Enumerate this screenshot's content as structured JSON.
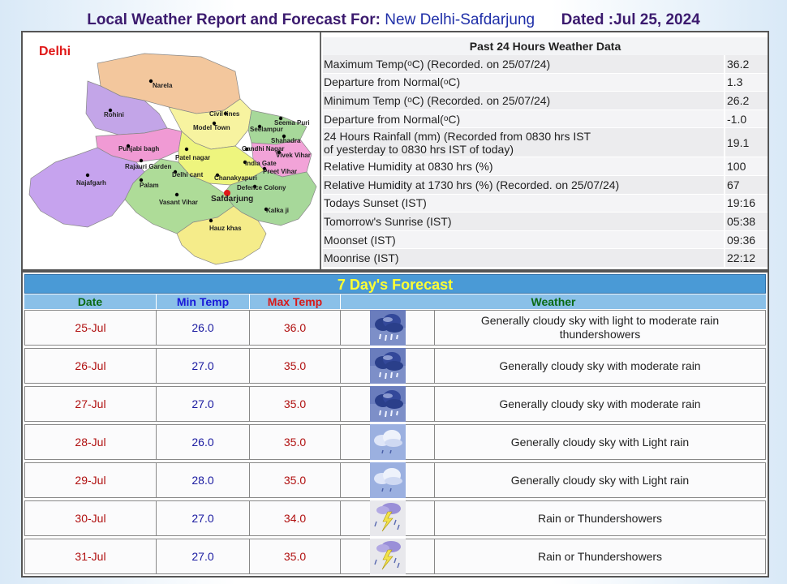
{
  "header": {
    "title_prefix": "Local Weather Report and Forecast For:",
    "station": "New Delhi-Safdarjung",
    "dated": "Dated :Jul 25, 2024"
  },
  "map": {
    "region_title": "Delhi",
    "labels": [
      "Narela",
      "Rohini",
      "Civil lines",
      "Model Town",
      "Seema Puri",
      "Seelampur",
      "Shahadra",
      "Punjabi bagh",
      "Gandhi Nagar",
      "Vivek Vihar",
      "Patel nagar",
      "Rajauri Garden",
      "India Gate",
      "Preet Vihar",
      "Delhi cant",
      "Chanakyapuri",
      "Najafgarh",
      "Palam",
      "Defence Colony",
      "Vasant Vihar",
      "Safdarjung",
      "Kalka ji",
      "Hauz khas"
    ]
  },
  "past24": {
    "heading": "Past 24 Hours Weather Data",
    "rows": [
      {
        "label_a": "Maximum Temp(",
        "sup": "o",
        "label_b": "C) (Recorded. on 25/07/24)",
        "value": "36.2"
      },
      {
        "label_a": "Departure from Normal(",
        "sup": "o",
        "label_b": "C)",
        "value": "1.3"
      },
      {
        "label_a": "Minimum Temp (",
        "sup": "o",
        "label_b": "C) (Recorded. on 25/07/24)",
        "value": "26.2"
      },
      {
        "label_a": "Departure from Normal(",
        "sup": "o",
        "label_b": "C)",
        "value": "-1.0"
      },
      {
        "label_line1": "24 Hours Rainfall (mm) (Recorded from 0830 hrs IST",
        "label_line2": "of yesterday to 0830 hrs IST of today)",
        "value": "19.1"
      },
      {
        "label": "Relative Humidity at 0830 hrs (%)",
        "value": "100"
      },
      {
        "label": "Relative Humidity at 1730 hrs (%) (Recorded. on 25/07/24)",
        "value": "67"
      },
      {
        "label": "Todays Sunset (IST)",
        "value": "19:16"
      },
      {
        "label": "Tomorrow's Sunrise (IST)",
        "value": "05:38"
      },
      {
        "label": "Moonset (IST)",
        "value": "09:36"
      },
      {
        "label": "Moonrise (IST)",
        "value": "22:12"
      }
    ]
  },
  "forecast": {
    "heading": "7 Day's Forecast",
    "columns": {
      "date": "Date",
      "min": "Min Temp",
      "max": "Max Temp",
      "weather": "Weather"
    },
    "rows": [
      {
        "date": "25-Jul",
        "min": "26.0",
        "max": "36.0",
        "icon": "heavy-rain-cloud-icon",
        "weather": "Generally cloudy sky with light to moderate rain thundershowers"
      },
      {
        "date": "26-Jul",
        "min": "27.0",
        "max": "35.0",
        "icon": "heavy-rain-cloud-icon",
        "weather": "Generally cloudy sky with moderate rain"
      },
      {
        "date": "27-Jul",
        "min": "27.0",
        "max": "35.0",
        "icon": "heavy-rain-cloud-icon",
        "weather": "Generally cloudy sky with moderate rain"
      },
      {
        "date": "28-Jul",
        "min": "26.0",
        "max": "35.0",
        "icon": "light-rain-cloud-icon",
        "weather": "Generally cloudy sky with Light rain"
      },
      {
        "date": "29-Jul",
        "min": "28.0",
        "max": "35.0",
        "icon": "light-rain-cloud-icon",
        "weather": "Generally cloudy sky with Light rain"
      },
      {
        "date": "30-Jul",
        "min": "27.0",
        "max": "34.0",
        "icon": "thunderstorm-icon",
        "weather": "Rain or Thundershowers"
      },
      {
        "date": "31-Jul",
        "min": "27.0",
        "max": "35.0",
        "icon": "thunderstorm-icon",
        "weather": "Rain or Thundershowers"
      }
    ]
  }
}
